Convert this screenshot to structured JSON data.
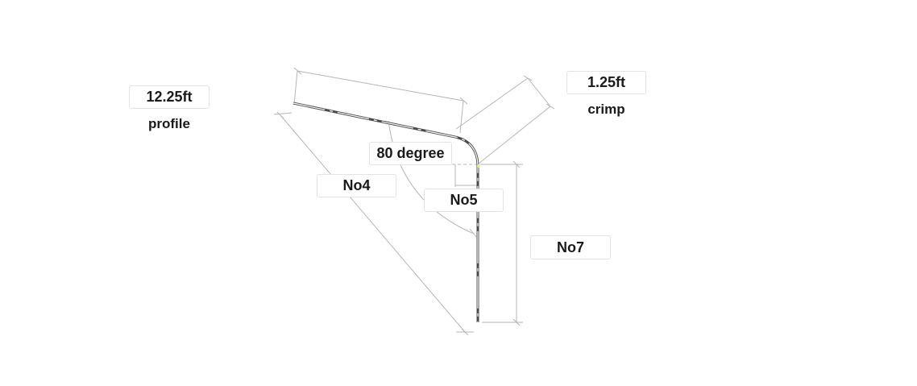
{
  "labels": {
    "profile_length": "12.25ft",
    "profile_name": "profile",
    "crimp_length": "1.25ft",
    "crimp_name": "crimp",
    "angle": "80 degree",
    "dim_no4": "No4",
    "dim_no5": "No5",
    "dim_no7": "No7"
  },
  "colors": {
    "line": "#b5b5b5",
    "profile": "#4a4a4a",
    "text": "#1a1a1a",
    "box_border": "#e3e3e3",
    "highlight": "#e6f08a"
  }
}
